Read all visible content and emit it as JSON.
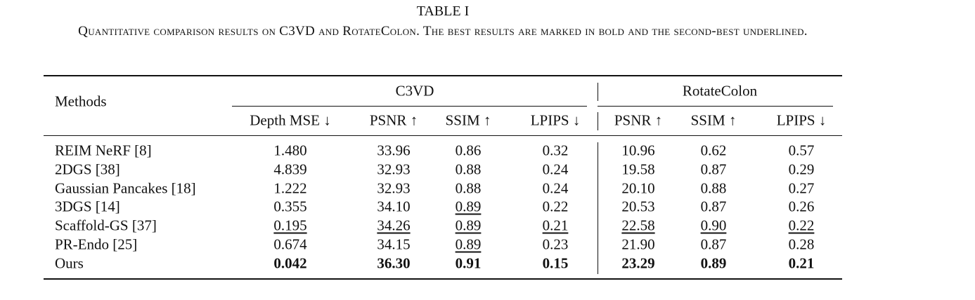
{
  "caption": {
    "label": "TABLE I",
    "text": "Quantitative comparison results on C3VD and RotateColon. The best results are marked in bold and the second-best underlined."
  },
  "table": {
    "group_headers": [
      "C3VD",
      "RotateColon"
    ],
    "columns": [
      "Methods",
      "Depth MSE ↓",
      "PSNR ↑",
      "SSIM ↑",
      "LPIPS ↓",
      "PSNR ↑",
      "SSIM ↑",
      "LPIPS ↓"
    ],
    "rows": [
      [
        "REIM NeRF [8]",
        "1.480",
        "33.96",
        "0.86",
        "0.32",
        "10.96",
        "0.62",
        "0.57"
      ],
      [
        "2DGS [38]",
        "4.839",
        "32.93",
        "0.88",
        "0.24",
        "19.58",
        "0.87",
        "0.29"
      ],
      [
        "Gaussian Pancakes [18]",
        "1.222",
        "32.93",
        "0.88",
        "0.24",
        "20.10",
        "0.88",
        "0.27"
      ],
      [
        "3DGS [14]",
        "0.355",
        "34.10",
        "0.89",
        "0.22",
        "20.53",
        "0.87",
        "0.26"
      ],
      [
        "Scaffold-GS [37]",
        "0.195",
        "34.26",
        "0.89",
        "0.21",
        "22.58",
        "0.90",
        "0.22"
      ],
      [
        "PR-Endo [25]",
        "0.674",
        "34.15",
        "0.89",
        "0.23",
        "21.90",
        "0.87",
        "0.28"
      ],
      [
        "Ours",
        "0.042",
        "36.30",
        "0.91",
        "0.15",
        "23.29",
        "0.89",
        "0.21"
      ]
    ]
  }
}
